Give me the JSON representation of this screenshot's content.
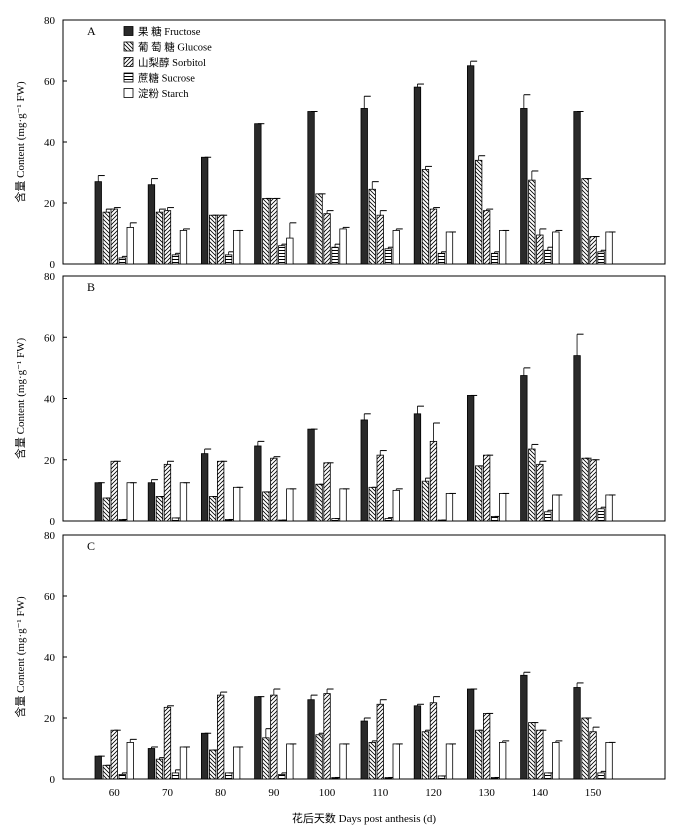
{
  "chart_data": [
    {
      "type": "bar",
      "panel_label": "A",
      "categories": [
        "60",
        "70",
        "80",
        "90",
        "100",
        "110",
        "120",
        "130",
        "140",
        "150"
      ],
      "ylim": [
        0,
        80
      ],
      "yticks": [
        "0",
        "20",
        "40",
        "60",
        "80"
      ],
      "ylabel": "含量 Content (mg·g⁻¹ FW)",
      "series": [
        {
          "name": "果 糖 Fructose",
          "values": [
            27,
            26,
            35,
            46,
            50,
            51,
            58,
            65,
            51,
            50
          ],
          "errors": [
            2,
            2,
            0,
            0,
            0,
            4,
            1,
            1.5,
            4.5,
            0
          ]
        },
        {
          "name": "葡 萄 糖 Glucose",
          "values": [
            17,
            17,
            16,
            21.5,
            23,
            24.5,
            31,
            34,
            27.5,
            28
          ],
          "errors": [
            1,
            1,
            0,
            0,
            0,
            2.5,
            1,
            1.5,
            3,
            0
          ]
        },
        {
          "name": "山梨醇 Sorbitol",
          "values": [
            18,
            17.5,
            16,
            21.5,
            16.5,
            16,
            18,
            17.5,
            9.5,
            9
          ],
          "errors": [
            0.5,
            1,
            0,
            0,
            1,
            1.5,
            0.5,
            0.5,
            2,
            0
          ]
        },
        {
          "name": "蔗糖 Sucrose",
          "values": [
            2,
            3,
            3,
            6,
            5.5,
            5,
            3.5,
            3.5,
            4.5,
            4
          ],
          "errors": [
            0.5,
            0.5,
            1,
            0.5,
            1,
            0.5,
            0.5,
            0.5,
            1,
            0.5
          ]
        },
        {
          "name": "淀粉 Starch",
          "values": [
            12,
            11,
            11,
            8.5,
            11.5,
            11,
            10.5,
            11,
            10.5,
            10.5
          ],
          "errors": [
            1.5,
            0.5,
            0,
            5,
            0.5,
            0.5,
            0,
            0,
            0.5,
            0
          ]
        }
      ],
      "legend": "top-left"
    },
    {
      "type": "bar",
      "panel_label": "B",
      "categories": [
        "60",
        "70",
        "80",
        "90",
        "100",
        "110",
        "120",
        "130",
        "140",
        "150"
      ],
      "ylim": [
        0,
        80
      ],
      "yticks": [
        "0",
        "20",
        "40",
        "60",
        "80"
      ],
      "ylabel": "含量 Content (mg·g⁻¹ FW)",
      "series": [
        {
          "name": "果 糖 Fructose",
          "values": [
            12.5,
            12.5,
            22,
            24.5,
            30,
            33,
            35,
            41,
            47.5,
            54
          ],
          "errors": [
            0,
            1,
            1.5,
            1.5,
            0,
            2,
            2.5,
            0,
            2.5,
            7
          ]
        },
        {
          "name": "葡 萄 糖 Glucose",
          "values": [
            7.5,
            8,
            8,
            9.5,
            12,
            11,
            13,
            18,
            23.5,
            20.5
          ],
          "errors": [
            0,
            0,
            0,
            0,
            0,
            0,
            1,
            0,
            1.5,
            0
          ]
        },
        {
          "name": "山梨醇 Sorbitol",
          "values": [
            19.5,
            18.5,
            19.5,
            20.5,
            19,
            21.5,
            26,
            21.5,
            18.5,
            20
          ],
          "errors": [
            0,
            1,
            0,
            0.5,
            0,
            1.5,
            6,
            0,
            1,
            0
          ]
        },
        {
          "name": "蔗糖 Sucrose",
          "values": [
            0.5,
            1,
            0.5,
            0.3,
            0.8,
            0.8,
            0.3,
            1.5,
            3,
            4
          ],
          "errors": [
            0,
            0,
            0,
            0,
            0,
            0.3,
            0,
            0,
            0.5,
            0.5
          ]
        },
        {
          "name": "淀粉 Starch",
          "values": [
            12.5,
            12.5,
            11,
            10.5,
            10.5,
            10,
            9,
            9,
            8.5,
            8.5
          ],
          "errors": [
            0,
            0,
            0,
            0,
            0,
            0.5,
            0,
            0,
            0,
            0
          ]
        }
      ],
      "legend": "none"
    },
    {
      "type": "bar",
      "panel_label": "C",
      "categories": [
        "60",
        "70",
        "80",
        "90",
        "100",
        "110",
        "120",
        "130",
        "140",
        "150"
      ],
      "ylim": [
        0,
        80
      ],
      "yticks": [
        "0",
        "20",
        "40",
        "60",
        "80"
      ],
      "ylabel": "含量 Content (mg·g⁻¹ FW)",
      "xlabel": "花后天数 Days post anthesis (d)",
      "series": [
        {
          "name": "果 糖 Fructose",
          "values": [
            7.5,
            10,
            15,
            27,
            26,
            19,
            24,
            29.5,
            34,
            30
          ],
          "errors": [
            0,
            0.5,
            0,
            0,
            1.5,
            1,
            0.5,
            0,
            1,
            1.5
          ]
        },
        {
          "name": "葡 萄 糖 Glucose",
          "values": [
            4.5,
            6.5,
            9.5,
            13.5,
            14.5,
            12,
            15.5,
            16,
            18.5,
            20
          ],
          "errors": [
            0,
            0.5,
            0,
            3,
            0.5,
            0.5,
            0.5,
            0,
            0,
            0
          ]
        },
        {
          "name": "山梨醇 Sorbitol",
          "values": [
            16,
            23.5,
            27.5,
            27.5,
            28,
            24.5,
            25,
            21.5,
            16,
            15.5
          ],
          "errors": [
            0,
            0.5,
            1,
            2,
            1.5,
            1.5,
            2,
            0,
            0,
            1.5
          ]
        },
        {
          "name": "蔗糖 Sucrose",
          "values": [
            1.5,
            2,
            2,
            1.5,
            0.5,
            0.5,
            1,
            0.5,
            2,
            2
          ],
          "errors": [
            0.5,
            1,
            0,
            0.5,
            0,
            0,
            0,
            0,
            0,
            0.5
          ]
        },
        {
          "name": "淀粉 Starch",
          "values": [
            12,
            10.5,
            10.5,
            11.5,
            11.5,
            11.5,
            11.5,
            12,
            12,
            12
          ],
          "errors": [
            1,
            0,
            0,
            0,
            0,
            0,
            0,
            0.5,
            0.5,
            0
          ]
        }
      ],
      "legend": "none"
    }
  ]
}
